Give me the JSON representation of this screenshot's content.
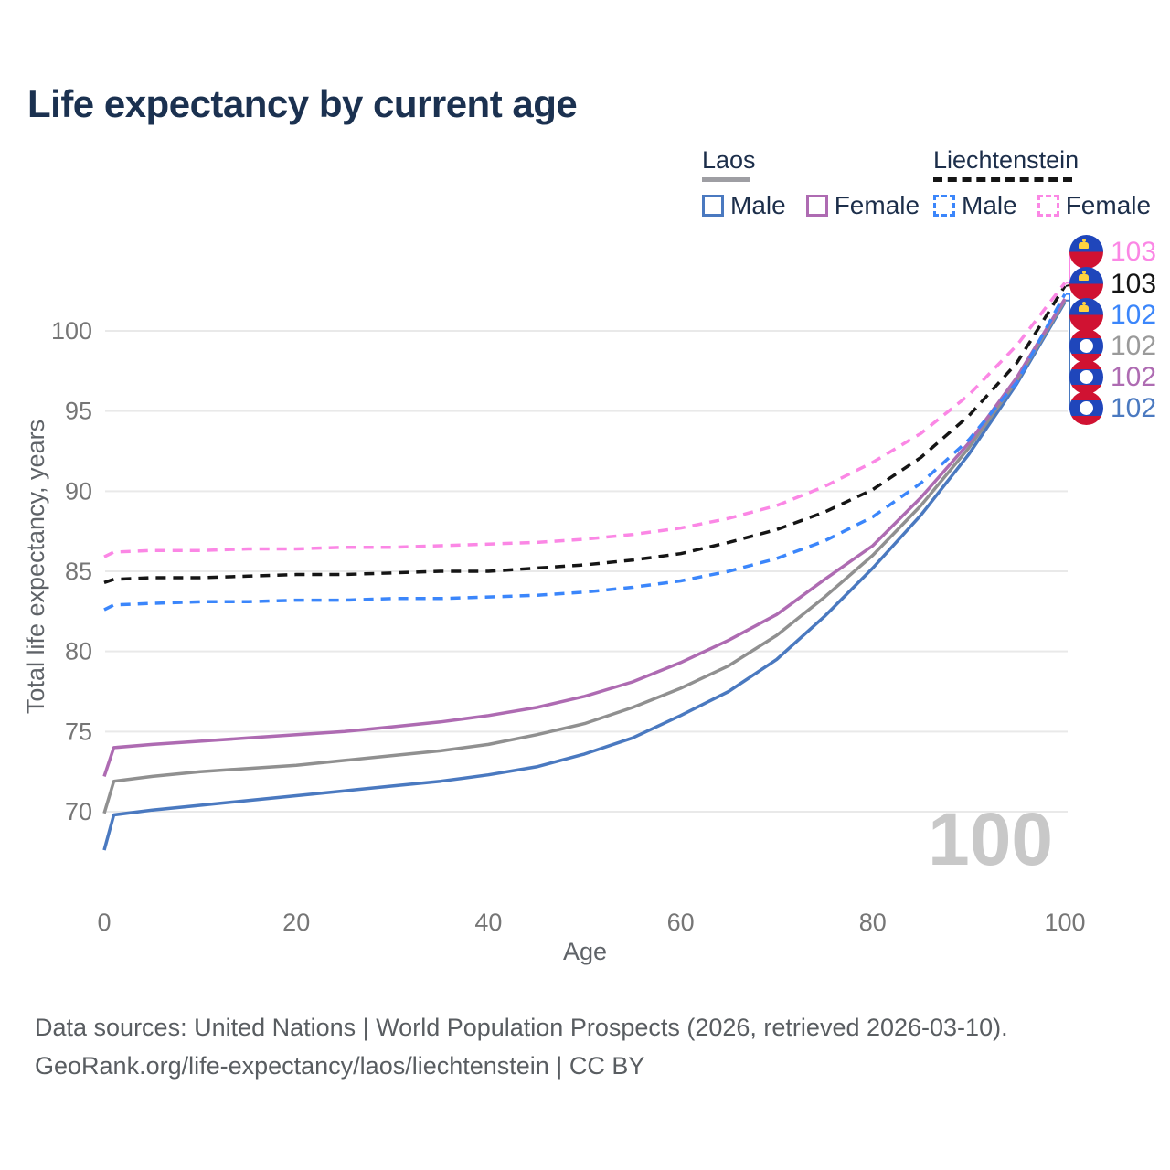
{
  "title": "Life expectancy by current age",
  "legend": {
    "groups": [
      {
        "name": "Laos",
        "underline_style": "solid",
        "underline_color": "#9e9ea3",
        "items": [
          {
            "label": "Male",
            "color": "#4a79c0",
            "dash": false
          },
          {
            "label": "Female",
            "color": "#ae6bb2",
            "dash": false
          }
        ]
      },
      {
        "name": "Liechtenstein",
        "underline_style": "dashed",
        "underline_color": "#151515",
        "items": [
          {
            "label": "Male",
            "color": "#3b86fb",
            "dash": true
          },
          {
            "label": "Female",
            "color": "#fb87e5",
            "dash": true
          }
        ]
      }
    ]
  },
  "chart_data": {
    "type": "line",
    "title": "Life expectancy by current age",
    "xlabel": "Age",
    "ylabel": "Total life expectancy, years",
    "x_ticks": [
      0,
      20,
      40,
      60,
      80,
      100
    ],
    "y_ticks": [
      70,
      75,
      80,
      85,
      90,
      95,
      100
    ],
    "xlim": [
      0,
      100
    ],
    "ylim": [
      67,
      104
    ],
    "grid": "horizontal-only",
    "legend_position": "top-right",
    "x": [
      0,
      1,
      5,
      10,
      15,
      20,
      25,
      30,
      35,
      40,
      45,
      50,
      55,
      60,
      65,
      70,
      75,
      80,
      85,
      90,
      95,
      100
    ],
    "series": [
      {
        "name": "Laos Male",
        "color": "#4a79c0",
        "dash": false,
        "values": [
          67.6,
          69.8,
          70.1,
          70.4,
          70.7,
          71.0,
          71.3,
          71.6,
          71.9,
          72.3,
          72.8,
          73.6,
          74.6,
          76.0,
          77.5,
          79.5,
          82.2,
          85.2,
          88.5,
          92.3,
          96.7,
          101.8
        ]
      },
      {
        "name": "Laos Total",
        "color": "#909090",
        "dash": false,
        "values": [
          69.9,
          71.9,
          72.2,
          72.5,
          72.7,
          72.9,
          73.2,
          73.5,
          73.8,
          74.2,
          74.8,
          75.5,
          76.5,
          77.7,
          79.1,
          81.0,
          83.4,
          86.0,
          89.1,
          92.7,
          96.9,
          101.9
        ]
      },
      {
        "name": "Laos Female",
        "color": "#ae6bb2",
        "dash": false,
        "values": [
          72.2,
          74.0,
          74.2,
          74.4,
          74.6,
          74.8,
          75.0,
          75.3,
          75.6,
          76.0,
          76.5,
          77.2,
          78.1,
          79.3,
          80.7,
          82.3,
          84.5,
          86.6,
          89.6,
          93.0,
          97.1,
          102.0
        ]
      },
      {
        "name": "Liechtenstein Male",
        "color": "#3b86fb",
        "dash": true,
        "values": [
          82.6,
          82.9,
          83.0,
          83.1,
          83.1,
          83.2,
          83.2,
          83.3,
          83.3,
          83.4,
          83.5,
          83.7,
          84.0,
          84.4,
          85.0,
          85.8,
          86.9,
          88.4,
          90.5,
          93.2,
          96.8,
          102.3
        ]
      },
      {
        "name": "Liechtenstein Total",
        "color": "#151515",
        "dash": true,
        "values": [
          84.3,
          84.5,
          84.6,
          84.6,
          84.7,
          84.8,
          84.8,
          84.9,
          85.0,
          85.0,
          85.2,
          85.4,
          85.7,
          86.1,
          86.8,
          87.6,
          88.7,
          90.1,
          92.1,
          94.7,
          98.0,
          102.8
        ]
      },
      {
        "name": "Liechtenstein Female",
        "color": "#fb87e5",
        "dash": true,
        "values": [
          85.9,
          86.2,
          86.3,
          86.3,
          86.4,
          86.4,
          86.5,
          86.5,
          86.6,
          86.7,
          86.8,
          87.0,
          87.3,
          87.7,
          88.3,
          89.1,
          90.3,
          91.8,
          93.6,
          96.0,
          99.1,
          103.0
        ]
      }
    ],
    "end_labels": [
      {
        "value": "103",
        "color": "#fb87e5",
        "flag": "liechtenstein"
      },
      {
        "value": "103",
        "color": "#151515",
        "flag": "liechtenstein"
      },
      {
        "value": "102",
        "color": "#3b86fb",
        "flag": "liechtenstein"
      },
      {
        "value": "102",
        "color": "#9a9a9a",
        "flag": "laos"
      },
      {
        "value": "102",
        "color": "#ae6bb2",
        "flag": "laos"
      },
      {
        "value": "102",
        "color": "#4a79c0",
        "flag": "laos"
      }
    ],
    "watermark": "100"
  },
  "footer": {
    "line1": "Data sources: United Nations | World Population Prospects (2026, retrieved 2026-03-10).",
    "line2": "GeoRank.org/life-expectancy/laos/liechtenstein | CC BY"
  }
}
